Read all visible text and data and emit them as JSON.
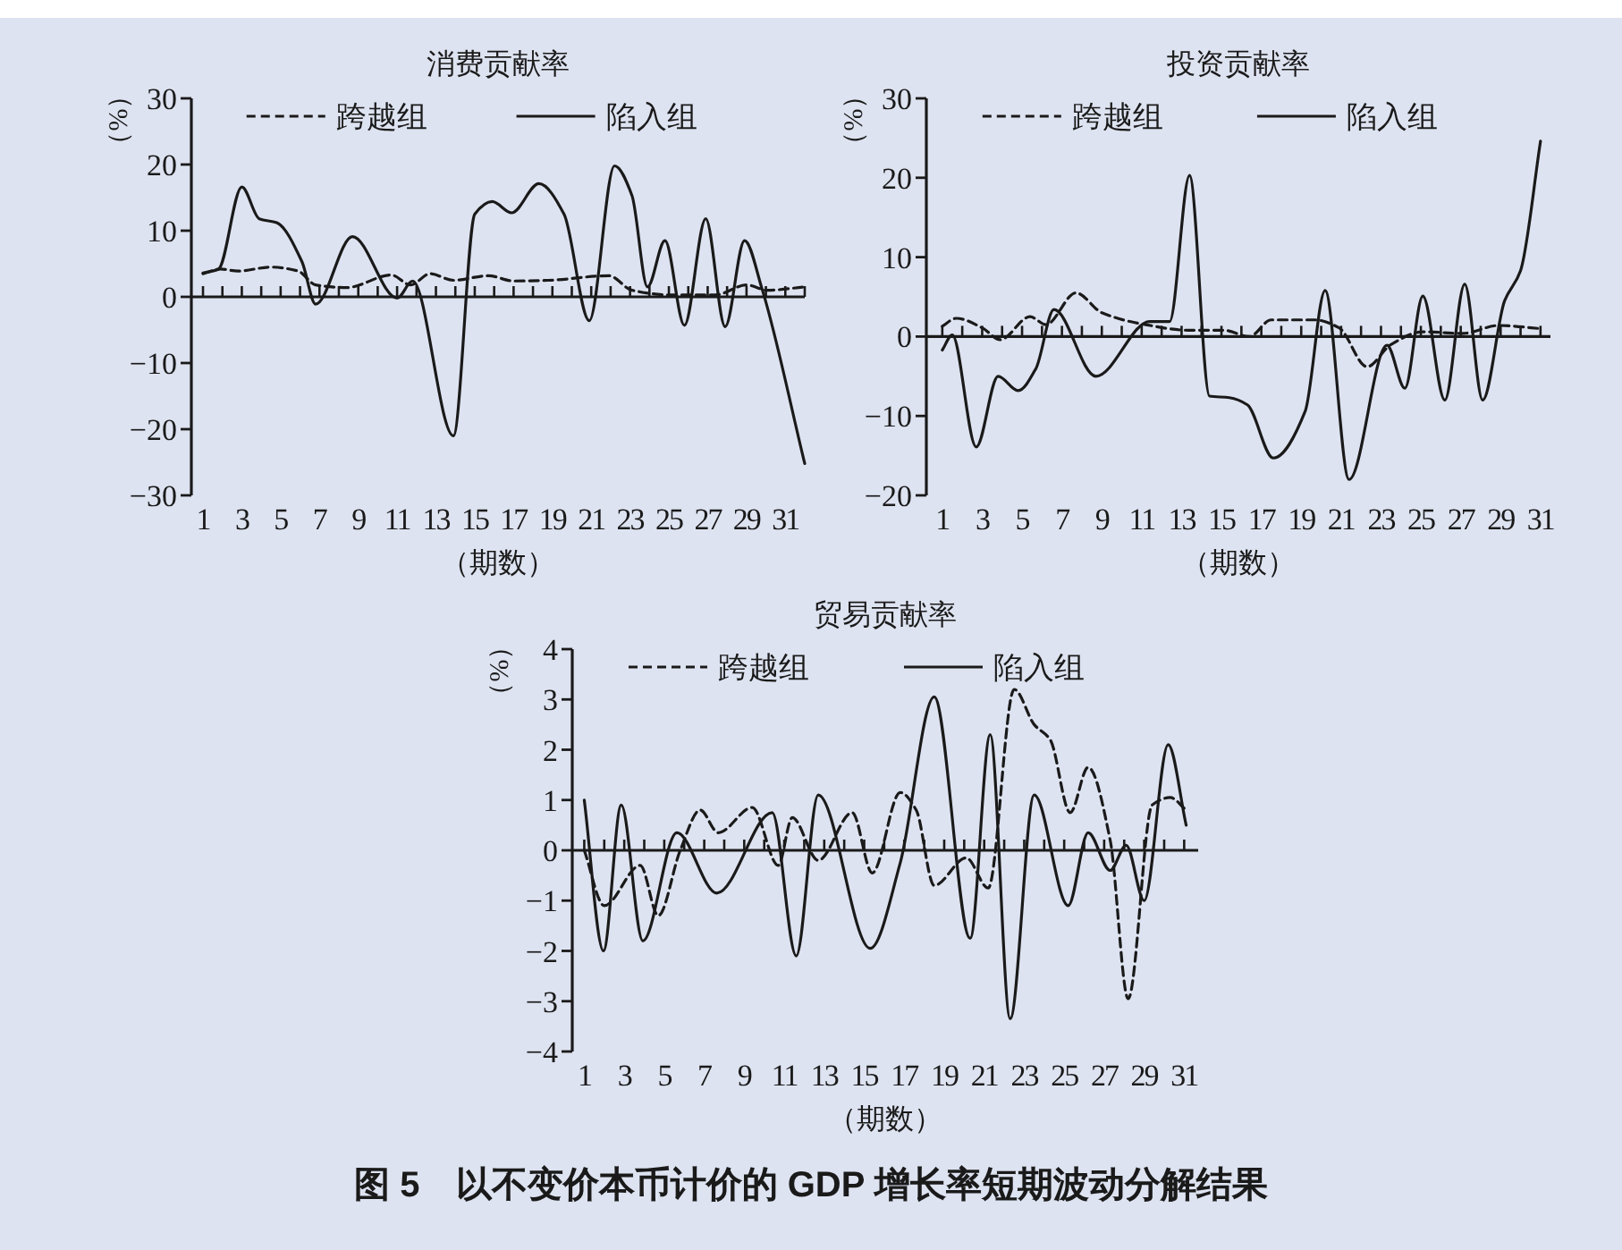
{
  "chart_data": [
    {
      "type": "line",
      "title": "消费贡献率",
      "ylabel": "（%）",
      "xlabel": "（期数）",
      "xlim": [
        0.4,
        32
      ],
      "ylim": [
        -30,
        30
      ],
      "yticks": [
        -30,
        -20,
        -10,
        0,
        10,
        20,
        30
      ],
      "xticks": [
        1,
        {
          "value": 2,
          "label": null
        },
        3,
        {
          "value": 4,
          "label": null
        },
        5,
        {
          "value": 6,
          "label": null
        },
        7,
        {
          "value": 8,
          "label": null
        },
        9,
        {
          "value": 10,
          "label": null
        },
        11,
        {
          "value": 12,
          "label": null
        },
        13,
        {
          "value": 14,
          "label": null
        },
        15,
        {
          "value": 16,
          "label": null
        },
        17,
        {
          "value": 18,
          "label": null
        },
        19,
        {
          "value": 20,
          "label": null
        },
        21,
        {
          "value": 22,
          "label": null
        },
        23,
        {
          "value": 24,
          "label": null
        },
        25,
        {
          "value": 26,
          "label": null
        },
        27,
        {
          "value": 28,
          "label": null
        },
        29,
        {
          "value": 30,
          "label": null
        },
        31,
        {
          "value": 32,
          "label": null
        }
      ],
      "legend": "top",
      "series": [
        {
          "name": "跨越组",
          "color": "#1a1a1a",
          "line_style": "dashed",
          "x": [
            1,
            1.9,
            2.8,
            4.5,
            5.9,
            6.8,
            8.4,
            10.7,
            11.7,
            12.7,
            13.9,
            15.7,
            17,
            18.8,
            21.9,
            23.1,
            25,
            27.4,
            29,
            30.1,
            32
          ],
          "values": [
            3.5,
            4.2,
            3.9,
            4.5,
            3.9,
            1.8,
            1.4,
            3.3,
            1.8,
            3.5,
            2.5,
            3.2,
            2.4,
            2.5,
            3.2,
            1,
            0.3,
            0.3,
            1.8,
            1,
            1.5
          ]
        },
        {
          "name": "陷入组",
          "color": "#1a1a1a",
          "line_style": "solid",
          "x": [
            1,
            1.8,
            3,
            3.9,
            4.8,
            6.1,
            6.8,
            8.7,
            11,
            11.8,
            13.9,
            15,
            15.9,
            16.9,
            18.3,
            19.6,
            20.9,
            22.2,
            23.1,
            23.9,
            24.8,
            25.8,
            26.9,
            27.9,
            28.9,
            29.8,
            32
          ],
          "values": [
            3.6,
            4.2,
            16.6,
            11.8,
            11.2,
            5.3,
            -1.1,
            9.1,
            -0.2,
            2.4,
            -21,
            12.5,
            14.4,
            12.7,
            17.1,
            12.5,
            -3.6,
            19.8,
            15.3,
            1.5,
            8.5,
            -4.3,
            11.8,
            -4.5,
            8.5,
            1.2,
            -25.2
          ]
        }
      ]
    },
    {
      "type": "line",
      "title": "投资贡献率",
      "ylabel": "（%）",
      "xlabel": "（期数）",
      "xlim": [
        0.2,
        31.5
      ],
      "ylim": [
        -20,
        30
      ],
      "yticks": [
        -20,
        -10,
        0,
        10,
        20,
        30
      ],
      "xticks": [
        1,
        {
          "value": 2,
          "label": null
        },
        3,
        {
          "value": 4,
          "label": null
        },
        5,
        {
          "value": 6,
          "label": null
        },
        7,
        {
          "value": 8,
          "label": null
        },
        9,
        {
          "value": 10,
          "label": null
        },
        11,
        {
          "value": 12,
          "label": null
        },
        13,
        {
          "value": 14,
          "label": null
        },
        15,
        {
          "value": 16,
          "label": null
        },
        17,
        {
          "value": 18,
          "label": null
        },
        19,
        {
          "value": 20,
          "label": null
        },
        21,
        {
          "value": 22,
          "label": null
        },
        23,
        {
          "value": 24,
          "label": null
        },
        25,
        {
          "value": 26,
          "label": null
        },
        27,
        {
          "value": 28,
          "label": null
        },
        29,
        {
          "value": 30,
          "label": null
        },
        31
      ],
      "legend": "top",
      "series": [
        {
          "name": "跨越组",
          "color": "#1a1a1a",
          "line_style": "dashed",
          "x": [
            1,
            1.7,
            3,
            3.9,
            5.4,
            6.2,
            7.7,
            9,
            11.2,
            13.3,
            15.1,
            16.4,
            17.5,
            19.7,
            20.9,
            22.3,
            23.5,
            25.1,
            27.1,
            28.9,
            31
          ],
          "values": [
            1.3,
            2.3,
            1.1,
            -0.4,
            2.5,
            1.5,
            5.5,
            3,
            1.5,
            0.8,
            0.8,
            0,
            2.1,
            2.1,
            1.1,
            -3.8,
            -1,
            0.6,
            0.4,
            1.4,
            1
          ]
        },
        {
          "name": "陷入组",
          "color": "#1a1a1a",
          "line_style": "solid",
          "x": [
            1,
            1.5,
            2.7,
            3.8,
            4.8,
            5.7,
            6.6,
            8.7,
            11.4,
            12.4,
            13.4,
            14.4,
            15.4,
            16.3,
            17.6,
            19.2,
            20.2,
            21.4,
            23.3,
            24.2,
            25.1,
            26.2,
            27.2,
            28.1,
            29.2,
            30,
            31
          ],
          "values": [
            -1.7,
            0.2,
            -13.9,
            -5,
            -6.8,
            -4,
            3.4,
            -5,
            1.9,
            1.9,
            20.3,
            -7.5,
            -7.7,
            -8.6,
            -15.3,
            -9.4,
            5.8,
            -18,
            -1.1,
            -6.5,
            5.1,
            -8,
            6.6,
            -8,
            4.5,
            8.3,
            24.6
          ]
        }
      ]
    },
    {
      "type": "line",
      "title": "贸易贡献率",
      "ylabel": "（%）",
      "xlabel": "（期数）",
      "xlim": [
        0.4,
        31.7
      ],
      "ylim": [
        -4,
        4
      ],
      "yticks": [
        -4,
        -3,
        -2,
        -1,
        0,
        1,
        2,
        3,
        4
      ],
      "xticks": [
        1,
        {
          "value": 2,
          "label": null
        },
        3,
        {
          "value": 4,
          "label": null
        },
        5,
        {
          "value": 6,
          "label": null
        },
        7,
        {
          "value": 8,
          "label": null
        },
        9,
        {
          "value": 10,
          "label": null
        },
        11,
        {
          "value": 12,
          "label": null
        },
        13,
        {
          "value": 14,
          "label": null
        },
        15,
        {
          "value": 16,
          "label": null
        },
        17,
        {
          "value": 18,
          "label": null
        },
        19,
        {
          "value": 20,
          "label": null
        },
        21,
        {
          "value": 22,
          "label": null
        },
        23,
        {
          "value": 24,
          "label": null
        },
        25,
        {
          "value": 26,
          "label": null
        },
        27,
        {
          "value": 28,
          "label": null
        },
        29,
        {
          "value": 30,
          "label": null
        },
        31
      ],
      "legend": "top",
      "series": [
        {
          "name": "跨越组",
          "color": "#1a1a1a",
          "line_style": "dashed",
          "x": [
            1,
            2,
            3.8,
            4.7,
            5.8,
            6.8,
            7.7,
            9.4,
            10.7,
            11.4,
            12.7,
            14.4,
            15.4,
            16.8,
            17.6,
            18.5,
            20.1,
            21.2,
            22.5,
            23.5,
            24.3,
            25.3,
            26.2,
            27.3,
            28.2,
            29.4,
            30.3,
            31.1
          ],
          "values": [
            0,
            -1.1,
            -0.3,
            -1.3,
            0,
            0.8,
            0.35,
            0.85,
            -0.3,
            0.65,
            -0.2,
            0.75,
            -0.45,
            1.15,
            0.8,
            -0.7,
            -0.15,
            -0.75,
            3.2,
            2.5,
            2.2,
            0.75,
            1.65,
            0.2,
            -2.95,
            0.9,
            1.05,
            0.8
          ]
        },
        {
          "name": "陷入组",
          "color": "#1a1a1a",
          "line_style": "solid",
          "x": [
            1,
            1.96,
            2.85,
            3.93,
            5.63,
            7.63,
            10.4,
            11.6,
            12.7,
            15.3,
            16.8,
            18.5,
            20.3,
            21.3,
            22.3,
            23.5,
            25.2,
            26.2,
            27.3,
            28.1,
            29,
            30.2,
            31.1
          ],
          "values": [
            1,
            -2,
            0.9,
            -1.8,
            0.35,
            -0.85,
            0.75,
            -2.1,
            1.1,
            -1.95,
            -0.25,
            3.05,
            -1.75,
            2.3,
            -3.35,
            1.1,
            -1.1,
            0.35,
            -0.4,
            0.1,
            -1,
            2.1,
            0.5
          ]
        }
      ],
      "annotations": [
        "图 5　以不变价本币计价的 GDP 增长率短期波动分解结果"
      ]
    }
  ]
}
